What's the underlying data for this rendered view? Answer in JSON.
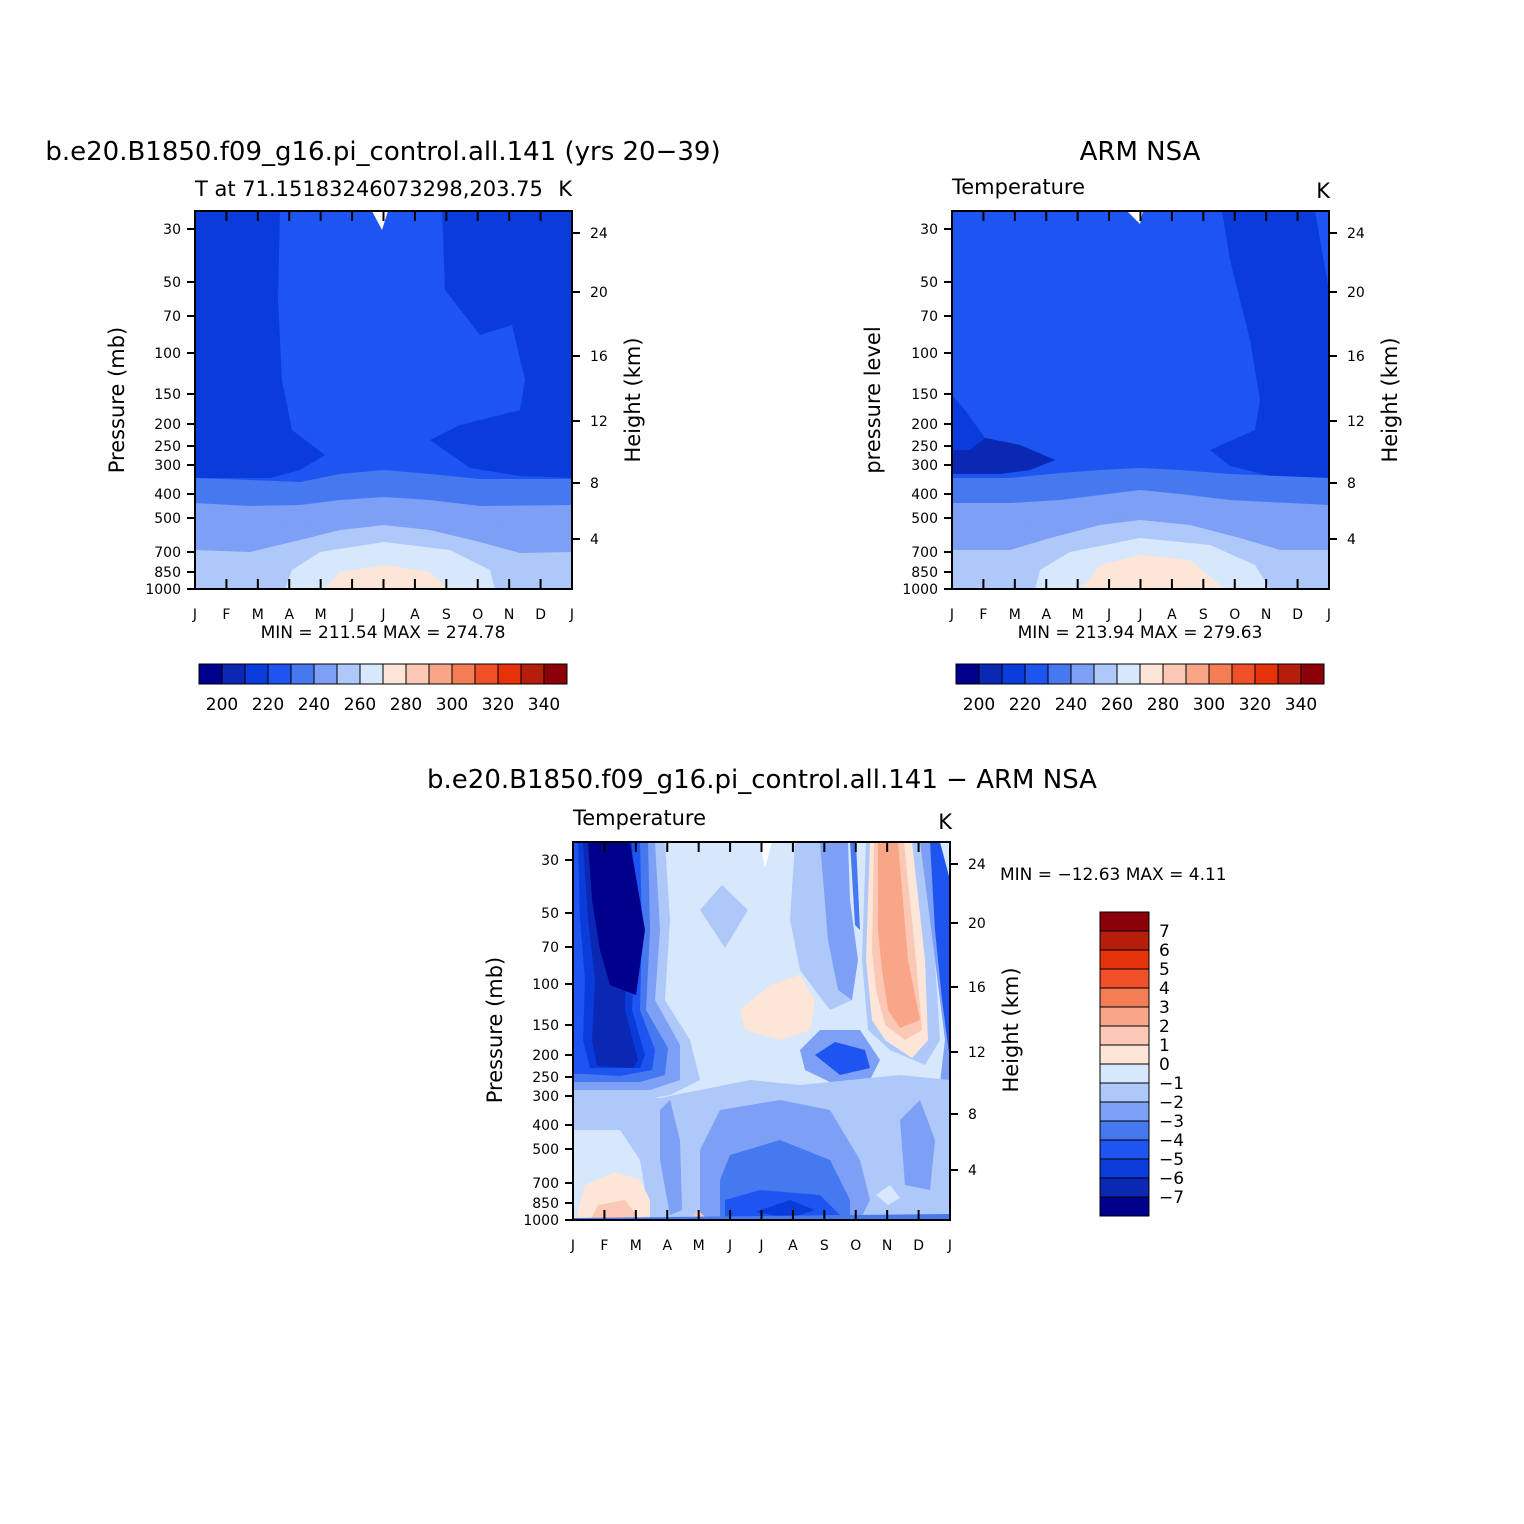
{
  "colors": {
    "temp_scale": [
      "#00008c",
      "#0a28b4",
      "#0a3cdc",
      "#1e55f0",
      "#4678f0",
      "#7d9ff5",
      "#afc8fa",
      "#d7e8fc",
      "#fde6d8",
      "#fac8b4",
      "#f8a687",
      "#f57d55",
      "#f05028",
      "#e6320a",
      "#b41e0a",
      "#8c000a"
    ],
    "diff_scale": [
      "#00008c",
      "#0a28b4",
      "#0a3cdc",
      "#1e55f0",
      "#4678f0",
      "#7d9ff5",
      "#afc8fa",
      "#d7e8fc",
      "#fde6d8",
      "#fac8b4",
      "#f8a687",
      "#f57d55",
      "#f05028",
      "#e6320a",
      "#b41e0a",
      "#8c000a"
    ]
  },
  "chart_data": [
    {
      "type": "heatmap",
      "title": "b.e20.B1850.f09_g16.pi_control.all.141 (yrs 20−39)",
      "subtitle": "T at 71.15183246073298,203.75",
      "units": "K",
      "ylabel": "Pressure (mb)",
      "ylabel_right": "Height (km)",
      "x_ticks": [
        "J",
        "F",
        "M",
        "A",
        "M",
        "J",
        "J",
        "A",
        "S",
        "O",
        "N",
        "D",
        "J"
      ],
      "y_ticks": [
        "30",
        "50",
        "70",
        "100",
        "150",
        "200",
        "250",
        "300",
        "400",
        "500",
        "700",
        "850",
        "1000"
      ],
      "y_ticks_right": [
        "24",
        "20",
        "16",
        "12",
        "8",
        "4"
      ],
      "min_label": "MIN = 211.54 MAX = 274.78",
      "min": 211.54,
      "max": 274.78,
      "colorbar_labels": [
        "200",
        "220",
        "240",
        "260",
        "280",
        "300",
        "320",
        "340"
      ]
    },
    {
      "type": "heatmap",
      "title": "ARM NSA",
      "subtitle": "Temperature",
      "units": "K",
      "ylabel": "pressure level",
      "ylabel_right": "Height (km)",
      "x_ticks": [
        "J",
        "F",
        "M",
        "A",
        "M",
        "J",
        "J",
        "A",
        "S",
        "O",
        "N",
        "D",
        "J"
      ],
      "y_ticks": [
        "30",
        "50",
        "70",
        "100",
        "150",
        "200",
        "250",
        "300",
        "400",
        "500",
        "700",
        "850",
        "1000"
      ],
      "y_ticks_right": [
        "24",
        "20",
        "16",
        "12",
        "8",
        "4"
      ],
      "min_label": "MIN = 213.94 MAX = 279.63",
      "min": 213.94,
      "max": 279.63,
      "colorbar_labels": [
        "200",
        "220",
        "240",
        "260",
        "280",
        "300",
        "320",
        "340"
      ]
    },
    {
      "type": "heatmap",
      "title": "b.e20.B1850.f09_g16.pi_control.all.141 − ARM NSA",
      "subtitle": "Temperature",
      "units": "K",
      "ylabel": "Pressure (mb)",
      "ylabel_right": "Height (km)",
      "x_ticks": [
        "J",
        "F",
        "M",
        "A",
        "M",
        "J",
        "J",
        "A",
        "S",
        "O",
        "N",
        "D",
        "J"
      ],
      "y_ticks": [
        "30",
        "50",
        "70",
        "100",
        "150",
        "200",
        "250",
        "300",
        "400",
        "500",
        "700",
        "850",
        "1000"
      ],
      "y_ticks_right": [
        "24",
        "20",
        "16",
        "12",
        "8",
        "4"
      ],
      "min_label": "MIN = −12.63 MAX =    4.11",
      "min": -12.63,
      "max": 4.11,
      "colorbar_labels": [
        "7",
        "6",
        "5",
        "4",
        "3",
        "2",
        "1",
        "0",
        "−1",
        "−2",
        "−3",
        "−4",
        "−5",
        "−6",
        "−7"
      ]
    }
  ]
}
